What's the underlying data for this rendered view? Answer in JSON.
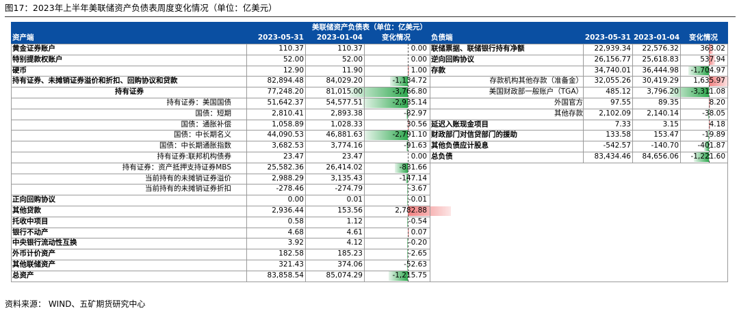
{
  "figure_title": "图17：2023年上半年美联储资产负债表周度变化情况（单位：亿美元）",
  "table_title": "美联储资产负债表（单位：亿美元）",
  "headers": {
    "assets": "资产端",
    "liabilities": "负债端",
    "date1": "2023-05-31",
    "date2": "2023-01-04",
    "change": "变化情况"
  },
  "assets": [
    {
      "label": "黄金证券账户",
      "d1": "110.37",
      "d2": "110.37",
      "chg": "0.00",
      "chg_value": 0.0,
      "style": "bold"
    },
    {
      "label": "特别提款权账户",
      "d1": "52.00",
      "d2": "52.00",
      "chg": "0.00",
      "chg_value": 0.0,
      "style": "bold"
    },
    {
      "label": "硬币",
      "d1": "12.90",
      "d2": "11.90",
      "chg": "1.00",
      "chg_value": 1.0,
      "style": "bold"
    },
    {
      "label": "持有证券、未摊销证券溢价和折扣、回购协议和贷款",
      "d1": "82,894.48",
      "d2": "84,029.20",
      "chg": "-1,134.72",
      "chg_value": -1134.72,
      "style": "bold"
    },
    {
      "label": "持有证券",
      "d1": "77,248.20",
      "d2": "81,015.00",
      "chg": "-3,766.80",
      "chg_value": -3766.8,
      "style": "bold-center"
    },
    {
      "label": "持有证券：美国国债",
      "d1": "51,642.37",
      "d2": "54,577.51",
      "chg": "-2,935.14",
      "chg_value": -2935.14,
      "style": "right"
    },
    {
      "label": "国债：短期",
      "d1": "2,810.41",
      "d2": "2,893.38",
      "chg": "-82.97",
      "chg_value": -82.97,
      "style": "right"
    },
    {
      "label": "国债：通胀补偿",
      "d1": "1,058.89",
      "d2": "1,028.33",
      "chg": "30.56",
      "chg_value": 30.56,
      "style": "right"
    },
    {
      "label": "国债：中长期名义",
      "d1": "44,090.53",
      "d2": "46,881.63",
      "chg": "-2,791.10",
      "chg_value": -2791.1,
      "style": "right"
    },
    {
      "label": "国债：中长期通胀指数",
      "d1": "3,682.53",
      "d2": "3,774.16",
      "chg": "-91.63",
      "chg_value": -91.63,
      "style": "right"
    },
    {
      "label": "持有证券:联邦机构债券",
      "d1": "23.47",
      "d2": "23.47",
      "chg": "0.00",
      "chg_value": 0.0,
      "style": "right"
    },
    {
      "label": "持有证券：资产抵押支持证券MBS",
      "d1": "25,582.36",
      "d2": "26,414.02",
      "chg": "-831.66",
      "chg_value": -831.66,
      "style": "right"
    },
    {
      "label": "当前持有的未摊销证券溢价",
      "d1": "2,988.29",
      "d2": "3,135.43",
      "chg": "-147.14",
      "chg_value": -147.14,
      "style": "right"
    },
    {
      "label": "当前持有的未摊销证券折扣",
      "d1": "-278.46",
      "d2": "-274.79",
      "chg": "-3.67",
      "chg_value": -3.67,
      "style": "right"
    },
    {
      "label": "正向回购协议",
      "d1": "0.00",
      "d2": "0.01",
      "chg": "-0.01",
      "chg_value": -0.01,
      "style": "bold"
    },
    {
      "label": "其他贷款",
      "d1": "2,936.44",
      "d2": "153.56",
      "chg": "2,782.88",
      "chg_value": 2782.88,
      "style": "bold"
    },
    {
      "label": "托收中项目",
      "d1": "0.58",
      "d2": "1.12",
      "chg": "-0.54",
      "chg_value": -0.54,
      "style": "bold"
    },
    {
      "label": "银行不动产",
      "d1": "4.68",
      "d2": "4.61",
      "chg": "0.07",
      "chg_value": 0.07,
      "style": "bold"
    },
    {
      "label": "中央银行流动性互换",
      "d1": "3.92",
      "d2": "4.12",
      "chg": "-0.20",
      "chg_value": -0.2,
      "style": "bold"
    },
    {
      "label": "外币计价资产",
      "d1": "182.58",
      "d2": "185.23",
      "chg": "-2.65",
      "chg_value": -2.65,
      "style": "bold"
    },
    {
      "label": "其他联储资产",
      "d1": "321.43",
      "d2": "374.06",
      "chg": "-52.63",
      "chg_value": -52.63,
      "style": "bold"
    },
    {
      "label": "总资产",
      "d1": "83,858.54",
      "d2": "85,074.29",
      "chg": "-1,215.75",
      "chg_value": -1215.75,
      "style": "bold"
    }
  ],
  "liabilities": [
    {
      "label": "联储票据、联储银行持有净额",
      "d1": "22,939.34",
      "d2": "22,576.32",
      "chg": "363.02",
      "chg_value": 363.02,
      "style": "bold"
    },
    {
      "label": "逆向回购协议",
      "d1": "26,156.77",
      "d2": "25,618.83",
      "chg": "537.94",
      "chg_value": 537.94,
      "style": "bold"
    },
    {
      "label": "存款",
      "d1": "34,740.01",
      "d2": "36,444.98",
      "chg": "-1,704.97",
      "chg_value": -1704.97,
      "style": "bold"
    },
    {
      "label": "存款机构其他存款（准备金）",
      "d1": "32,055.26",
      "d2": "30,419.29",
      "chg": "1,635.97",
      "chg_value": 1635.97,
      "style": "right"
    },
    {
      "label": "美国财政部一般账户（TGA）",
      "d1": "485.12",
      "d2": "3,796.20",
      "chg": "-3,311.08",
      "chg_value": -3311.08,
      "style": "right"
    },
    {
      "label": "外国官方",
      "d1": "97.55",
      "d2": "89.35",
      "chg": "8.20",
      "chg_value": 8.2,
      "style": "right"
    },
    {
      "label": "其他存款",
      "d1": "2,102.09",
      "d2": "2,140.14",
      "chg": "-38.05",
      "chg_value": -38.05,
      "style": "right"
    },
    {
      "label": "延迟入账现金项目",
      "d1": "7.33",
      "d2": "3.15",
      "chg": "4.18",
      "chg_value": 4.18,
      "style": "bold"
    },
    {
      "label": "财政部门对信贷部门的援助",
      "d1": "133.58",
      "d2": "153.47",
      "chg": "-19.89",
      "chg_value": -19.89,
      "style": "bold"
    },
    {
      "label": "其他负债应计股息",
      "d1": "-542.57",
      "d2": "-140.70",
      "chg": "-401.87",
      "chg_value": -401.87,
      "style": "bold"
    },
    {
      "label": "总负债",
      "d1": "83,434.46",
      "d2": "84,656.06",
      "chg": "-1,221.60",
      "chg_value": -1221.6,
      "style": "bold"
    }
  ],
  "source": "资料来源：  WIND、五矿期货研究中心",
  "colors": {
    "header_bg": "#0a4fa2",
    "positive_bar": "#f08080",
    "negative_bar": "#2fa84f"
  }
}
